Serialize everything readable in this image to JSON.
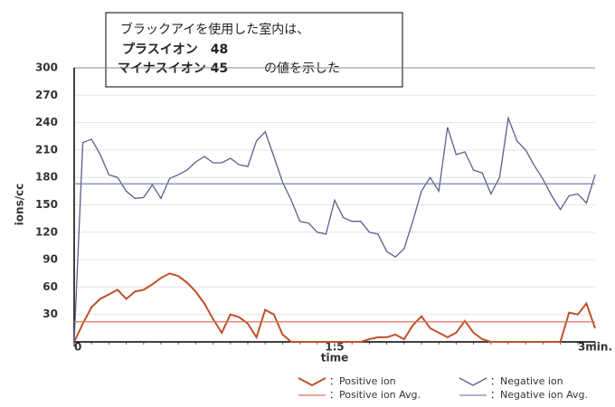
{
  "chart_data": {
    "type": "line",
    "annotations": [
      {
        "text": "ブラックアイを使用した室内は、",
        "color": "#111111",
        "bold": false
      },
      {
        "text": "プラスイオン　48",
        "color": "#e8141b",
        "bold": true
      },
      {
        "text": "マイナスイオン 45",
        "color": "#1a28c8",
        "bold": true
      },
      {
        "text": "の値を示した",
        "color": "#111111",
        "bold": false
      }
    ],
    "y_label": "ions/cc",
    "x_label": "time",
    "xlim": [
      0,
      3
    ],
    "xticks": [
      0,
      1.5,
      {
        "value": 3,
        "label": "3min."
      }
    ],
    "ylim": [
      0,
      300
    ],
    "yticks": [
      30,
      60,
      90,
      120,
      150,
      180,
      210,
      240,
      270,
      300
    ],
    "grid": true,
    "x": [
      0,
      0.05,
      0.1,
      0.15,
      0.2,
      0.25,
      0.3,
      0.35,
      0.4,
      0.45,
      0.5,
      0.55,
      0.6,
      0.65,
      0.7,
      0.75,
      0.8,
      0.85,
      0.9,
      0.95,
      1,
      1.05,
      1.1,
      1.15,
      1.2,
      1.25,
      1.3,
      1.35,
      1.4,
      1.45,
      1.5,
      1.55,
      1.6,
      1.65,
      1.7,
      1.75,
      1.8,
      1.85,
      1.9,
      1.95,
      2,
      2.05,
      2.1,
      2.15,
      2.2,
      2.25,
      2.3,
      2.35,
      2.4,
      2.45,
      2.5,
      2.55,
      2.6,
      2.65,
      2.7,
      2.75,
      2.8,
      2.85,
      2.9,
      2.95,
      3
    ],
    "series": [
      {
        "name": "：Positive ion",
        "color": "#c0502a",
        "values": [
          0,
          20,
          38,
          47,
          52,
          57,
          47,
          55,
          57,
          63,
          70,
          75,
          72,
          65,
          55,
          42,
          25,
          10,
          30,
          27,
          20,
          5,
          35,
          30,
          8,
          0,
          0,
          0,
          0,
          0,
          0,
          0,
          0,
          0,
          3,
          5,
          5,
          8,
          3,
          18,
          28,
          15,
          10,
          5,
          10,
          23,
          10,
          3,
          0,
          0,
          0,
          0,
          0,
          0,
          0,
          0,
          0,
          32,
          30,
          42,
          15
        ]
      },
      {
        "name": "：Negative ion",
        "color": "#5a5f8c",
        "values": [
          0,
          218,
          222,
          205,
          183,
          180,
          165,
          157,
          158,
          172,
          157,
          179,
          183,
          188,
          197,
          203,
          196,
          196,
          201,
          194,
          192,
          220,
          230,
          203,
          175,
          155,
          132,
          130,
          120,
          118,
          155,
          136,
          132,
          132,
          120,
          118,
          99,
          93,
          102,
          132,
          165,
          180,
          165,
          235,
          205,
          208,
          188,
          185,
          162,
          180,
          245,
          220,
          210,
          193,
          178,
          160,
          145,
          160,
          162,
          152,
          183
        ]
      },
      {
        "name": "：Positive ion Avg.",
        "color": "#d9785a",
        "value": 22
      },
      {
        "name": "：Negative ion Avg.",
        "color": "#7d82a8",
        "value": 173
      }
    ]
  }
}
